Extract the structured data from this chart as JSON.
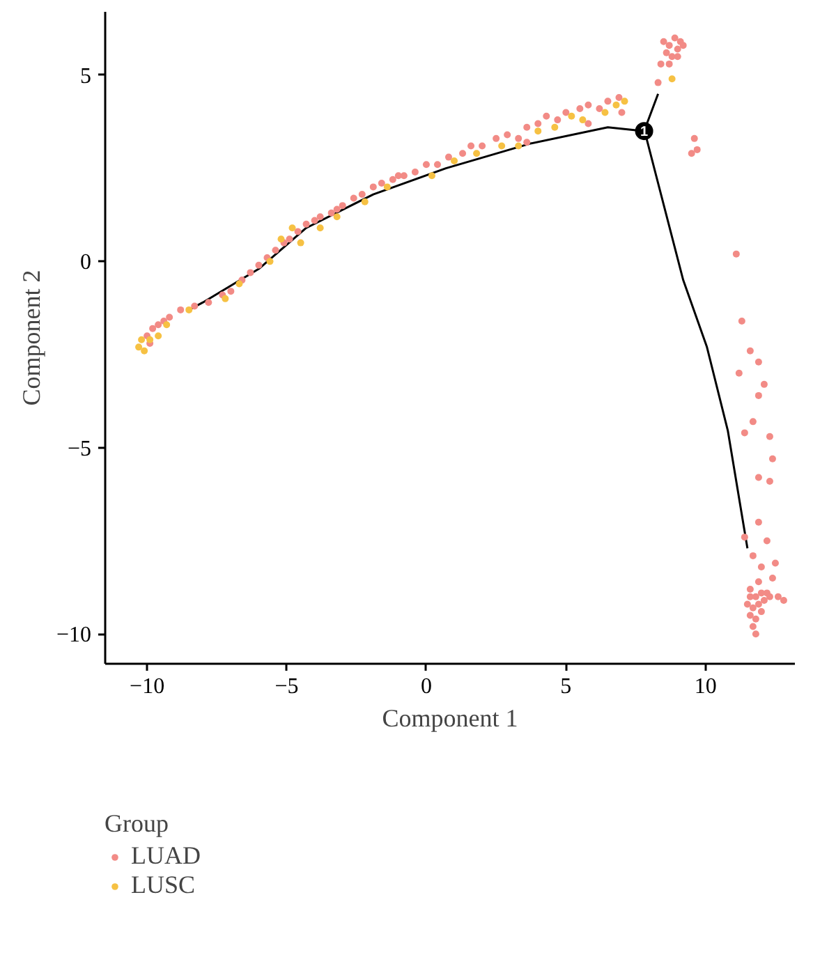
{
  "chart_data": {
    "type": "scatter",
    "xlabel": "Component 1",
    "ylabel": "Component 2",
    "legend_title": "Group",
    "xlim": [
      -11.5,
      13.2
    ],
    "ylim": [
      -10.8,
      6.7
    ],
    "xticks": [
      -10,
      -5,
      0,
      5,
      10
    ],
    "yticks": [
      -10,
      -5,
      0,
      5
    ],
    "grid": false,
    "legend": "bottom",
    "annotations": [
      {
        "text": "1",
        "x": 7.8,
        "y": 3.5
      }
    ],
    "series": [
      {
        "type": "line",
        "color": "#000000",
        "x": [
          -8.5,
          -8.0,
          -6.0,
          -4.3,
          -1.9,
          0.7,
          2.3,
          3.7,
          6.5,
          7.8,
          7.9,
          9.2,
          10.05,
          10.8,
          11.5
        ],
        "values": [
          -1.3,
          -1.1,
          -0.2,
          0.9,
          1.8,
          2.5,
          2.85,
          3.16,
          3.6,
          3.5,
          3.26,
          -0.5,
          -2.3,
          -4.55,
          -7.7
        ]
      },
      {
        "type": "line",
        "color": "#000000",
        "x": [
          7.8,
          8.3
        ],
        "values": [
          3.5,
          4.5
        ]
      },
      {
        "name": "LUAD",
        "marker": "circle",
        "color": "#f28b86",
        "x": [
          -10.0,
          -9.8,
          -9.6,
          -9.9,
          -9.4,
          -9.2,
          -8.8,
          -8.3,
          -7.8,
          -7.3,
          -7.0,
          -6.6,
          -6.3,
          -6.0,
          -5.7,
          -5.4,
          -5.1,
          -4.9,
          -4.6,
          -4.3,
          -4.0,
          -3.8,
          -3.4,
          -3.0,
          -2.6,
          -2.3,
          -1.9,
          -1.6,
          -1.2,
          -0.8,
          -0.4,
          0.0,
          0.4,
          0.8,
          1.3,
          1.6,
          2.0,
          2.5,
          2.9,
          3.3,
          3.6,
          4.0,
          4.3,
          4.7,
          5.0,
          5.5,
          5.8,
          6.2,
          6.5,
          6.9,
          7.0,
          3.6,
          5.8,
          -3.2,
          -1.0,
          8.5,
          8.7,
          8.9,
          9.0,
          9.1,
          8.8,
          8.6,
          9.2,
          8.4,
          8.7,
          8.3,
          9.0,
          9.6,
          9.5,
          9.7,
          11.1,
          11.3,
          11.6,
          11.9,
          11.2,
          12.1,
          11.9,
          11.7,
          11.4,
          12.3,
          12.4,
          11.9,
          12.3,
          11.9,
          11.4,
          12.2,
          11.7,
          12.0,
          12.5,
          11.9,
          12.4,
          11.6,
          11.8,
          12.0,
          12.2,
          11.5,
          11.7,
          11.9,
          12.1,
          12.3,
          12.6,
          11.6,
          11.8,
          12.0,
          11.7,
          11.8,
          11.6,
          12.8
        ],
        "values": [
          -2.0,
          -1.8,
          -1.7,
          -2.2,
          -1.6,
          -1.5,
          -1.3,
          -1.2,
          -1.1,
          -0.9,
          -0.8,
          -0.5,
          -0.3,
          -0.1,
          0.1,
          0.3,
          0.5,
          0.6,
          0.8,
          1.0,
          1.1,
          1.2,
          1.3,
          1.5,
          1.7,
          1.8,
          2.0,
          2.1,
          2.2,
          2.3,
          2.4,
          2.6,
          2.6,
          2.8,
          2.9,
          3.1,
          3.1,
          3.3,
          3.4,
          3.3,
          3.6,
          3.7,
          3.9,
          3.8,
          4.0,
          4.1,
          4.2,
          4.1,
          4.3,
          4.4,
          4.0,
          3.2,
          3.7,
          1.4,
          2.3,
          5.9,
          5.8,
          6.0,
          5.7,
          5.9,
          5.5,
          5.6,
          5.8,
          5.3,
          5.3,
          4.8,
          5.5,
          3.3,
          2.9,
          3.0,
          0.2,
          -1.6,
          -2.4,
          -2.7,
          -3.0,
          -3.3,
          -3.6,
          -4.3,
          -4.6,
          -4.7,
          -5.3,
          -5.8,
          -5.9,
          -7.0,
          -7.4,
          -7.5,
          -7.9,
          -8.2,
          -8.1,
          -8.6,
          -8.5,
          -8.8,
          -9.0,
          -8.9,
          -8.9,
          -9.2,
          -9.3,
          -9.2,
          -9.1,
          -9.0,
          -9.0,
          -9.5,
          -9.6,
          -9.4,
          -9.8,
          -10.0,
          -9.0,
          -9.1
        ]
      },
      {
        "name": "LUSC",
        "marker": "circle",
        "color": "#f6c143",
        "x": [
          -10.3,
          -10.1,
          -9.9,
          -10.2,
          -9.6,
          -9.3,
          -8.5,
          -7.2,
          -6.7,
          -5.6,
          -5.2,
          -4.8,
          -4.5,
          -3.8,
          -3.2,
          -2.2,
          -1.4,
          0.2,
          1.0,
          1.8,
          2.7,
          3.3,
          4.0,
          4.6,
          5.2,
          5.6,
          6.4,
          6.8,
          7.1,
          8.8
        ],
        "values": [
          -2.3,
          -2.4,
          -2.1,
          -2.1,
          -2.0,
          -1.7,
          -1.3,
          -1.0,
          -0.6,
          0.0,
          0.6,
          0.9,
          0.5,
          0.9,
          1.2,
          1.6,
          2.0,
          2.3,
          2.7,
          2.9,
          3.1,
          3.1,
          3.5,
          3.6,
          3.9,
          3.8,
          4.0,
          4.2,
          4.3,
          4.9
        ]
      }
    ]
  }
}
